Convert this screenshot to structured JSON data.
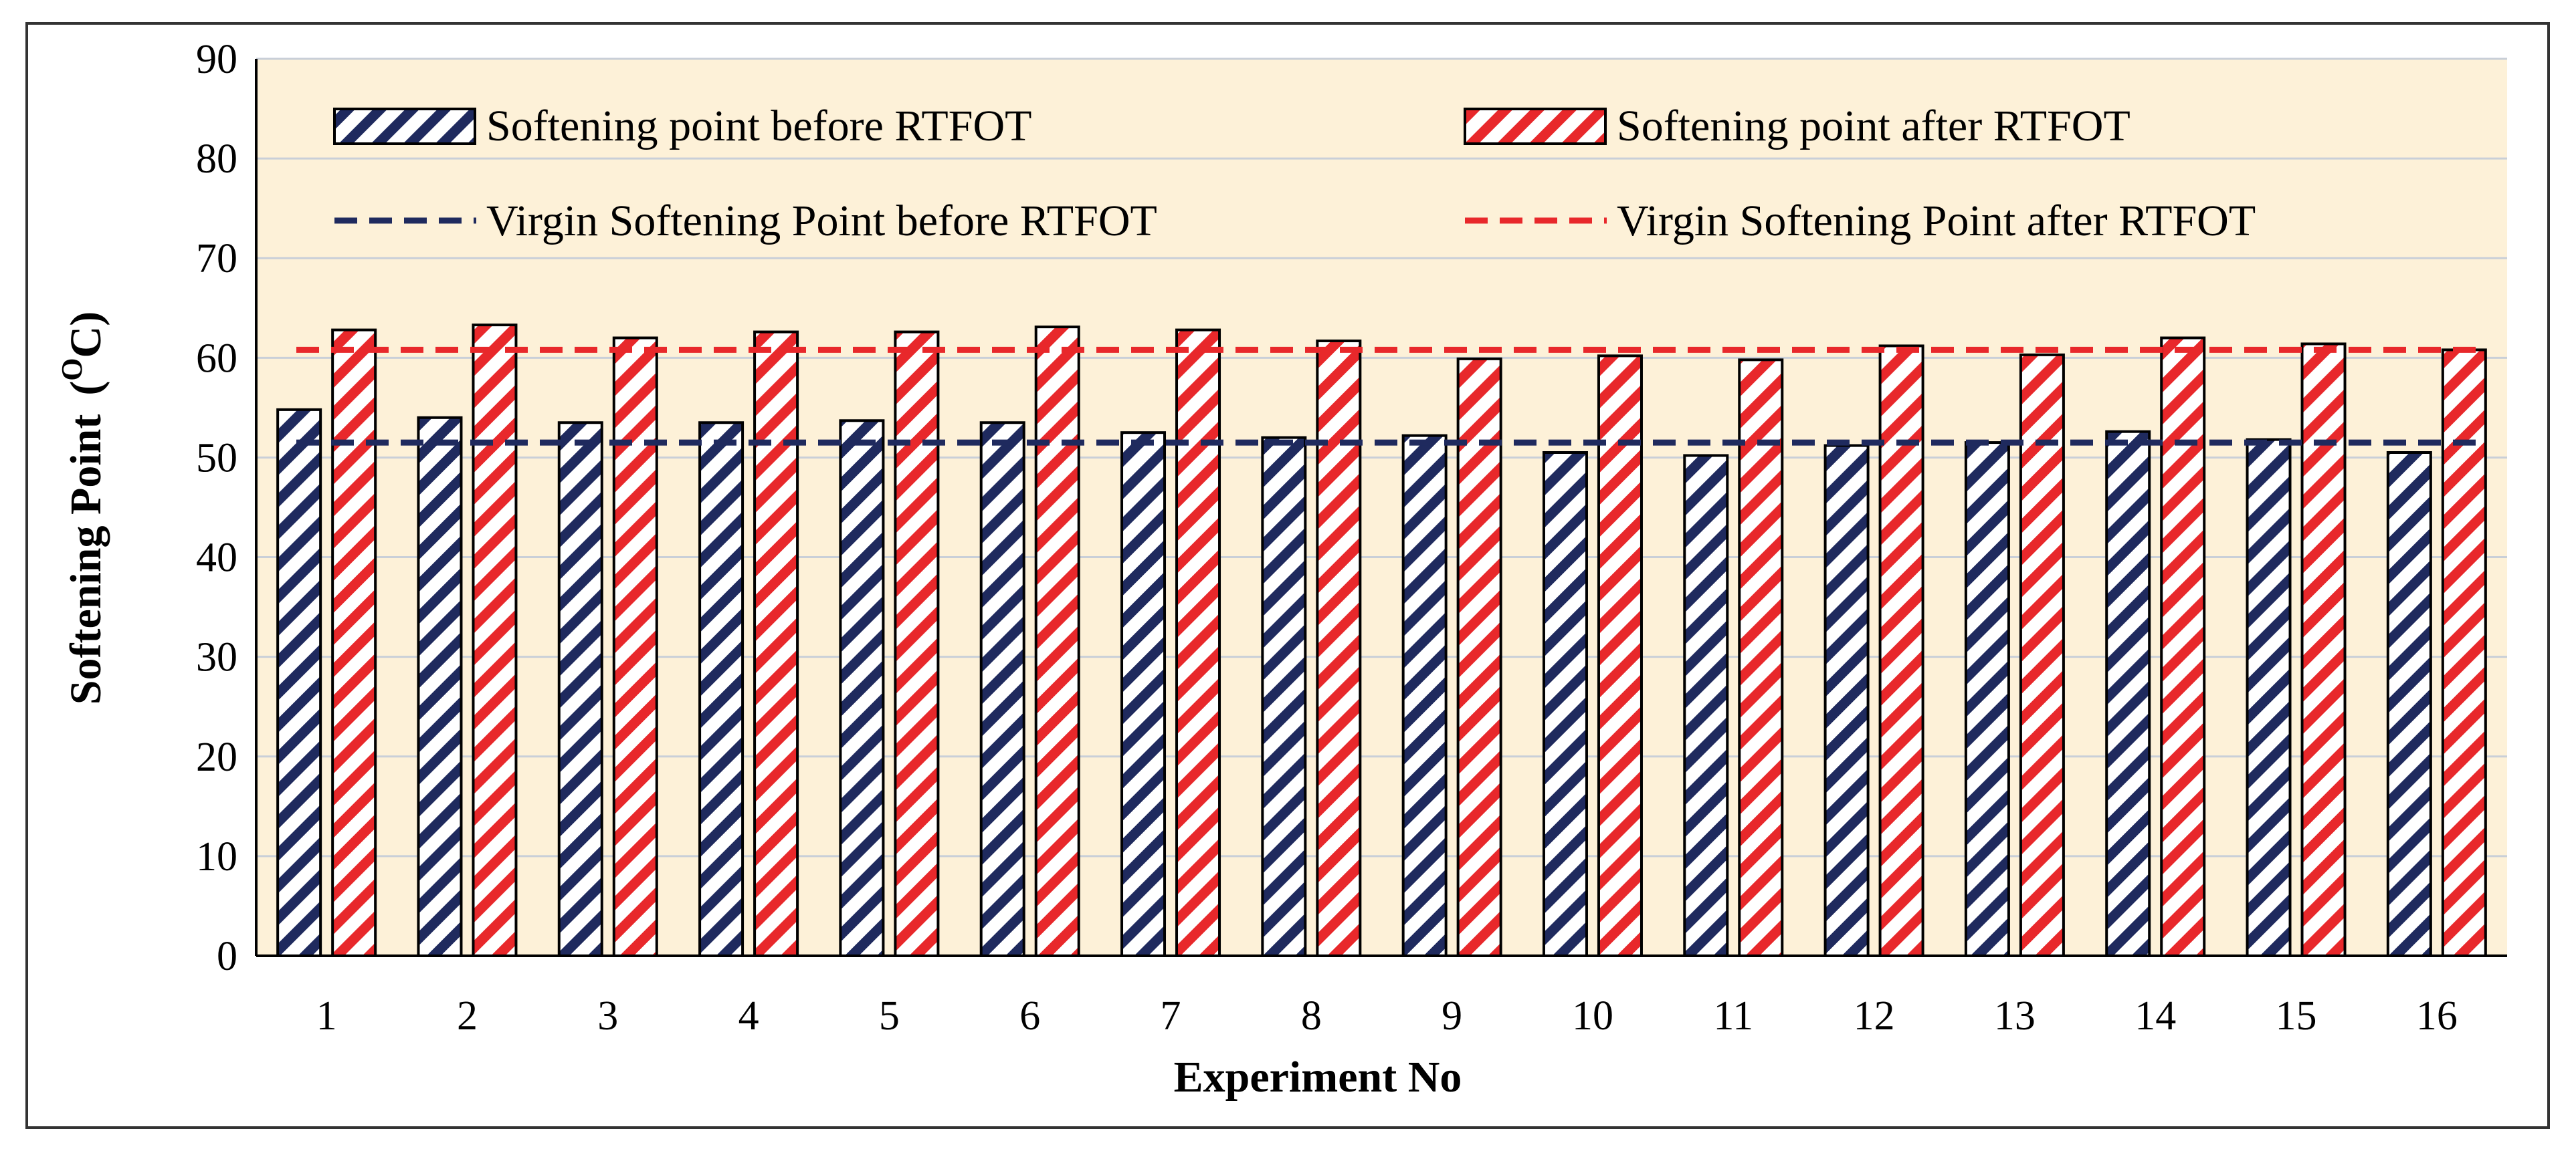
{
  "chart_data": {
    "type": "bar",
    "title": "",
    "xlabel": "Experiment No",
    "ylabel": "Softening Point",
    "ylabel_unit_base": "(",
    "ylabel_unit_sup": "O",
    "ylabel_unit_tail": "C)",
    "ylim": [
      0,
      90
    ],
    "ytick_step": 10,
    "grid": true,
    "legend_position": "top",
    "categories": [
      "1",
      "2",
      "3",
      "4",
      "5",
      "6",
      "7",
      "8",
      "9",
      "10",
      "11",
      "12",
      "13",
      "14",
      "15",
      "16"
    ],
    "series": [
      {
        "name": "Softening point before RTFOT",
        "color": "#1f2a5e",
        "values": [
          54.8,
          54.0,
          53.5,
          53.5,
          53.7,
          53.5,
          52.5,
          52.0,
          52.2,
          50.5,
          50.2,
          51.2,
          51.5,
          52.6,
          51.8,
          50.5
        ]
      },
      {
        "name": "Softening point after RTFOT",
        "color": "#e8282b",
        "values": [
          62.8,
          63.3,
          62.0,
          62.6,
          62.6,
          63.1,
          62.8,
          61.7,
          59.9,
          60.2,
          59.8,
          61.2,
          60.3,
          62.0,
          61.4,
          60.8
        ]
      }
    ],
    "reference_lines": [
      {
        "name": "Virgin Softening Point before RTFOT",
        "value": 51.5,
        "color": "#1f2a5e"
      },
      {
        "name": "Virgin Softening Point after RTFOT",
        "value": 60.8,
        "color": "#e8282b"
      }
    ],
    "plot_background": "#fdf1d8",
    "gridline_color": "#c9cfd8"
  }
}
